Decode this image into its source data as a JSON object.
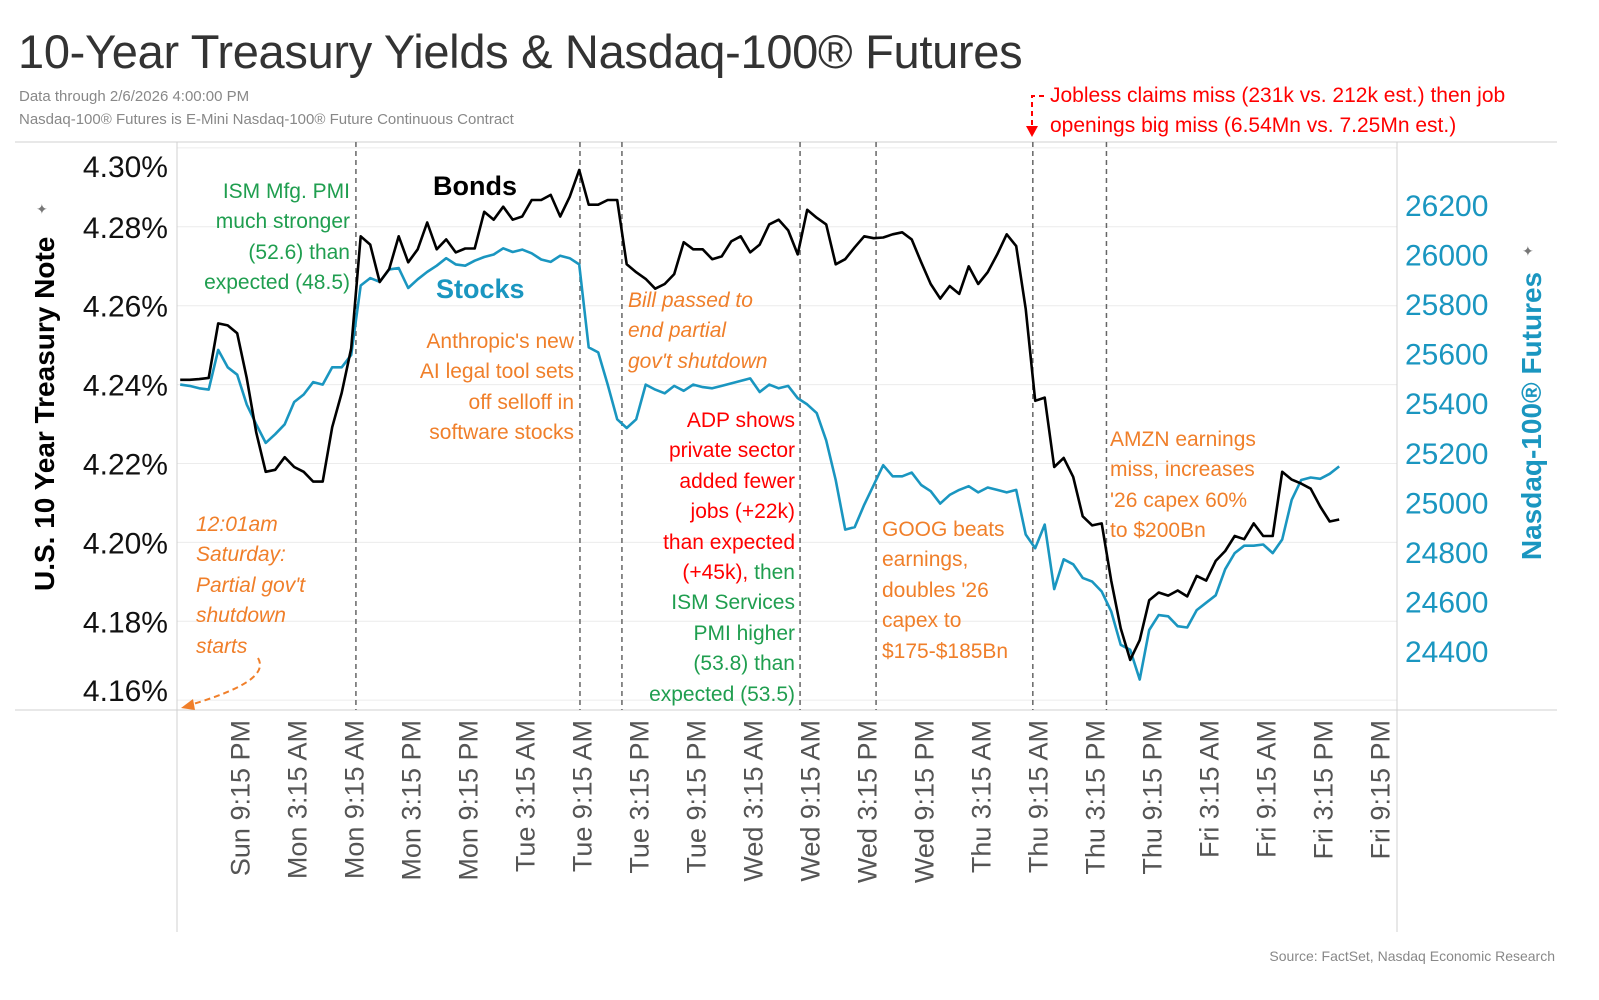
{
  "title": "10-Year Treasury Yields & Nasdaq-100® Futures",
  "subtitle_lines": [
    "Data through 2/6/2026 4:00:00 PM",
    "Nasdaq-100® Futures is E-Mini Nasdaq-100® Future Continuous Contract"
  ],
  "source": "Source: FactSet, Nasdaq Economic Research",
  "colors": {
    "bonds": "#000000",
    "stocks": "#1a96c0",
    "green": "#1f9e4f",
    "orange": "#f07f2a",
    "red": "#ff0000",
    "grid": "#ececec",
    "event_line": "#666666"
  },
  "annotations": {
    "ism_mfg": [
      "ISM Mfg. PMI",
      "much stronger",
      "(52.6) than",
      "expected (48.5)"
    ],
    "anthropic": [
      "Anthropic's new",
      "AI legal tool sets",
      "off selloff in",
      "software stocks"
    ],
    "bill": [
      "Bill passed to",
      "end partial",
      "gov't shutdown"
    ],
    "adp_red": [
      "ADP shows",
      "private sector",
      "added fewer",
      "jobs (+22k)",
      "than expected"
    ],
    "adp_mixed_red": "(+45k),",
    "adp_mixed_green": " then",
    "adp_green": [
      "ISM Services",
      "PMI higher",
      "(53.8) than",
      "expected (53.5)"
    ],
    "goog": [
      "GOOG beats",
      "earnings,",
      "doubles '26",
      "capex to",
      "$175-$185Bn"
    ],
    "amzn": [
      "AMZN earnings",
      "miss, increases",
      "'26 capex 60%",
      "to $200Bn"
    ],
    "shutdown": [
      "12:01am",
      "Saturday:",
      "Partial gov't",
      "shutdown",
      "starts"
    ],
    "jobless": [
      "Jobless claims miss (231k vs. 212k est.) then job",
      "openings big miss (6.54Mn vs. 7.25Mn est.)"
    ]
  },
  "chart_data": {
    "type": "line",
    "title": "10-Year Treasury Yields & Nasdaq-100® Futures",
    "ylabel": "U.S. 10 Year Treasury Note",
    "y2label": "Nasdaq-100® Futures",
    "ylim": [
      4.1575,
      4.3015
    ],
    "y2lim": [
      24162,
      26454
    ],
    "xlim": [
      "2026-02-01T14:40",
      "2026-02-06T23:05"
    ],
    "yticks": [
      4.3,
      4.28,
      4.26,
      4.24,
      4.22,
      4.2,
      4.18,
      4.16
    ],
    "ytick_labels": [
      "4.30%",
      "4.28%",
      "4.26%",
      "4.24%",
      "4.22%",
      "4.20%",
      "4.18%",
      "4.16%"
    ],
    "y2ticks": [
      26200,
      26000,
      25800,
      25600,
      25400,
      25200,
      25000,
      24800,
      24600,
      24400
    ],
    "y2tick_labels": [
      "26200",
      "26000",
      "25800",
      "25600",
      "25400",
      "25200",
      "25000",
      "24800",
      "24600",
      "24400"
    ],
    "xticks": [
      "2026-02-01T21:15",
      "2026-02-02T03:15",
      "2026-02-02T09:15",
      "2026-02-02T15:15",
      "2026-02-02T21:15",
      "2026-02-03T03:15",
      "2026-02-03T09:15",
      "2026-02-03T15:15",
      "2026-02-03T21:15",
      "2026-02-04T03:15",
      "2026-02-04T09:15",
      "2026-02-04T15:15",
      "2026-02-04T21:15",
      "2026-02-05T03:15",
      "2026-02-05T09:15",
      "2026-02-05T15:15",
      "2026-02-05T21:15",
      "2026-02-06T03:15",
      "2026-02-06T09:15",
      "2026-02-06T15:15",
      "2026-02-06T21:15"
    ],
    "xtick_labels": [
      "Sun 9:15 PM",
      "Mon 3:15 AM",
      "Mon 9:15 AM",
      "Mon 3:15 PM",
      "Mon 9:15 PM",
      "Tue 3:15 AM",
      "Tue 9:15 AM",
      "Tue 3:15 PM",
      "Tue 9:15 PM",
      "Wed 3:15 AM",
      "Wed 9:15 AM",
      "Wed 3:15 PM",
      "Wed 9:15 PM",
      "Thu 3:15 AM",
      "Thu 9:15 AM",
      "Thu 3:15 PM",
      "Thu 9:15 PM",
      "Fri 3:15 AM",
      "Fri 9:15 AM",
      "Fri 3:15 PM",
      "Fri 9:15 PM"
    ],
    "event_lines": [
      "2026-02-02T09:30",
      "2026-02-03T09:05",
      "2026-02-03T13:30",
      "2026-02-04T08:15",
      "2026-02-04T16:15",
      "2026-02-05T08:45",
      "2026-02-05T16:30"
    ],
    "grid": true,
    "x": [
      "2026-02-01T15:00",
      "2026-02-01T16:00",
      "2026-02-01T17:00",
      "2026-02-01T18:00",
      "2026-02-01T19:00",
      "2026-02-01T20:00",
      "2026-02-01T21:00",
      "2026-02-01T22:00",
      "2026-02-01T23:00",
      "2026-02-02T00:00",
      "2026-02-02T01:00",
      "2026-02-02T02:00",
      "2026-02-02T03:00",
      "2026-02-02T04:00",
      "2026-02-02T05:00",
      "2026-02-02T06:00",
      "2026-02-02T07:00",
      "2026-02-02T08:00",
      "2026-02-02T09:00",
      "2026-02-02T10:00",
      "2026-02-02T11:00",
      "2026-02-02T12:00",
      "2026-02-02T13:00",
      "2026-02-02T14:00",
      "2026-02-02T15:00",
      "2026-02-02T16:00",
      "2026-02-02T17:00",
      "2026-02-02T18:00",
      "2026-02-02T19:00",
      "2026-02-02T20:00",
      "2026-02-02T21:00",
      "2026-02-02T22:00",
      "2026-02-02T23:00",
      "2026-02-03T00:00",
      "2026-02-03T01:00",
      "2026-02-03T02:00",
      "2026-02-03T03:00",
      "2026-02-03T04:00",
      "2026-02-03T05:00",
      "2026-02-03T06:00",
      "2026-02-03T07:00",
      "2026-02-03T08:00",
      "2026-02-03T09:00",
      "2026-02-03T10:00",
      "2026-02-03T11:00",
      "2026-02-03T12:00",
      "2026-02-03T13:00",
      "2026-02-03T14:00",
      "2026-02-03T15:00",
      "2026-02-03T16:00",
      "2026-02-03T17:00",
      "2026-02-03T18:00",
      "2026-02-03T19:00",
      "2026-02-03T20:00",
      "2026-02-03T21:00",
      "2026-02-03T22:00",
      "2026-02-03T23:00",
      "2026-02-04T00:00",
      "2026-02-04T01:00",
      "2026-02-04T02:00",
      "2026-02-04T03:00",
      "2026-02-04T04:00",
      "2026-02-04T05:00",
      "2026-02-04T06:00",
      "2026-02-04T07:00",
      "2026-02-04T08:00",
      "2026-02-04T09:00",
      "2026-02-04T10:00",
      "2026-02-04T11:00",
      "2026-02-04T12:00",
      "2026-02-04T13:00",
      "2026-02-04T14:00",
      "2026-02-04T15:00",
      "2026-02-04T16:00",
      "2026-02-04T17:00",
      "2026-02-04T18:00",
      "2026-02-04T19:00",
      "2026-02-04T20:00",
      "2026-02-04T21:00",
      "2026-02-04T22:00",
      "2026-02-04T23:00",
      "2026-02-05T00:00",
      "2026-02-05T01:00",
      "2026-02-05T02:00",
      "2026-02-05T03:00",
      "2026-02-05T04:00",
      "2026-02-05T05:00",
      "2026-02-05T06:00",
      "2026-02-05T07:00",
      "2026-02-05T08:00",
      "2026-02-05T09:00",
      "2026-02-05T10:00",
      "2026-02-05T11:00",
      "2026-02-05T12:00",
      "2026-02-05T13:00",
      "2026-02-05T14:00",
      "2026-02-05T15:00",
      "2026-02-05T16:00",
      "2026-02-05T17:00",
      "2026-02-05T18:00",
      "2026-02-05T19:00",
      "2026-02-05T20:00",
      "2026-02-05T21:00",
      "2026-02-05T22:00",
      "2026-02-05T23:00",
      "2026-02-06T00:00",
      "2026-02-06T01:00",
      "2026-02-06T02:00",
      "2026-02-06T03:00",
      "2026-02-06T04:00",
      "2026-02-06T05:00",
      "2026-02-06T06:00",
      "2026-02-06T07:00",
      "2026-02-06T08:00",
      "2026-02-06T09:00",
      "2026-02-06T10:00",
      "2026-02-06T11:00",
      "2026-02-06T12:00",
      "2026-02-06T13:00",
      "2026-02-06T14:00",
      "2026-02-06T15:00",
      "2026-02-06T16:00",
      "2026-02-06T17:00"
    ],
    "series": [
      {
        "name": "Bonds",
        "axis": "left",
        "values": [
          4.2412,
          4.2412,
          4.2414,
          4.2417,
          4.2555,
          4.255,
          4.253,
          4.2417,
          4.2279,
          4.2179,
          4.2184,
          4.2216,
          4.2191,
          4.2179,
          4.2154,
          4.2154,
          4.2292,
          4.2379,
          4.2492,
          4.2776,
          4.2755,
          4.266,
          4.2693,
          4.2776,
          4.271,
          4.2743,
          4.2811,
          4.2743,
          4.2768,
          4.2735,
          4.2745,
          4.2745,
          4.2838,
          4.2818,
          4.2851,
          4.2818,
          4.2826,
          4.2868,
          4.2868,
          4.2881,
          4.2826,
          4.2876,
          4.2944,
          4.2856,
          4.2856,
          4.2868,
          4.2868,
          4.2705,
          4.2685,
          4.2668,
          4.2643,
          4.2655,
          4.268,
          4.2761,
          4.2743,
          4.2743,
          4.2718,
          4.2725,
          4.2763,
          4.2776,
          4.2735,
          4.2755,
          4.2806,
          4.2818,
          4.2791,
          4.273,
          4.2843,
          4.2823,
          4.2806,
          4.2705,
          4.2718,
          4.2748,
          4.2776,
          4.2771,
          4.2773,
          4.2781,
          4.2786,
          4.2768,
          4.271,
          4.2655,
          4.2618,
          4.265,
          4.263,
          4.27,
          4.2655,
          4.2685,
          4.273,
          4.2781,
          4.2751,
          4.2592,
          4.2359,
          4.2367,
          4.2191,
          4.2214,
          4.2166,
          4.2066,
          4.2043,
          4.2048,
          4.1903,
          4.1782,
          4.1702,
          4.1752,
          4.1853,
          4.1873,
          4.1865,
          4.1878,
          4.1863,
          4.1915,
          4.1903,
          4.1953,
          4.1978,
          4.2016,
          4.2008,
          4.2048,
          4.2016,
          4.2016,
          4.2179,
          4.2159,
          4.2149,
          4.2136,
          4.2091,
          4.2053,
          4.2058
        ]
      },
      {
        "name": "Stocks",
        "axis": "right",
        "values": [
          25475,
          25470,
          25460,
          25455,
          25615,
          25545,
          25515,
          25395,
          25315,
          25240,
          25275,
          25315,
          25405,
          25435,
          25485,
          25475,
          25545,
          25545,
          25595,
          25875,
          25905,
          25890,
          25940,
          25945,
          25865,
          25900,
          25930,
          25955,
          25985,
          25960,
          25955,
          25975,
          25990,
          26000,
          26025,
          26010,
          26020,
          26005,
          25980,
          25970,
          25995,
          25985,
          25960,
          25625,
          25605,
          25475,
          25335,
          25300,
          25335,
          25475,
          25455,
          25440,
          25470,
          25450,
          25475,
          25465,
          25460,
          25470,
          25480,
          25490,
          25500,
          25445,
          25475,
          25460,
          25470,
          25420,
          25395,
          25360,
          25250,
          25090,
          24890,
          24900,
          24990,
          25070,
          25150,
          25105,
          25105,
          25120,
          25070,
          25045,
          24995,
          25030,
          25050,
          25065,
          25040,
          25060,
          25050,
          25040,
          25050,
          24870,
          24815,
          24910,
          24650,
          24770,
          24750,
          24695,
          24680,
          24640,
          24560,
          24425,
          24405,
          24285,
          24485,
          24545,
          24540,
          24500,
          24495,
          24565,
          24595,
          24625,
          24730,
          24795,
          24825,
          24825,
          24830,
          24795,
          24850,
          25010,
          25090,
          25100,
          25095,
          25115,
          25145
        ]
      }
    ]
  }
}
